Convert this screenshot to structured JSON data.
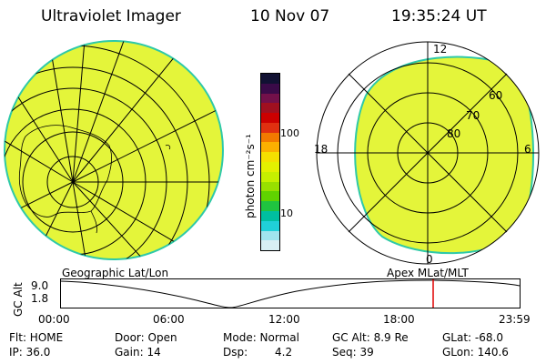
{
  "header": {
    "title": "Ultraviolet Imager",
    "date": "10 Nov 07",
    "time": "19:35:24 UT"
  },
  "colorbar": {
    "unit_label": "photon cm⁻²s⁻¹",
    "tick_100": "100",
    "tick_10": "10",
    "colors": [
      "#111133",
      "#3a0a48",
      "#73104a",
      "#a01020",
      "#cc0000",
      "#e03010",
      "#f27a00",
      "#fbb000",
      "#f5e000",
      "#e4f000",
      "#c6f000",
      "#98e000",
      "#60d300",
      "#20c440",
      "#00bfa0",
      "#20d0d8",
      "#a0e4ee",
      "#d8f0f4"
    ]
  },
  "geo_panel": {
    "label": "Geographic Lat/Lon",
    "fill": "#e4f53a",
    "edge": "#2ec9a8"
  },
  "polar_panel": {
    "label": "Apex  MLat/MLT",
    "mlt_top": "12",
    "mlt_bottom": "0",
    "mlt_left": "18",
    "mlt_right": "6",
    "lat_60": "60",
    "lat_70": "70",
    "lat_80": "80"
  },
  "altitude_plot": {
    "axis_label": "GC Alt",
    "y_top": "9.0",
    "y_bottom": "1.8",
    "x_ticks": [
      "00:00",
      "06:00",
      "12:00",
      "18:00",
      "23:59"
    ],
    "marker_color": "#e00000"
  },
  "status": {
    "flt": "Flt: HOME",
    "ip": "IP: 36.0",
    "door": "Door: Open",
    "gain": "Gain: 14",
    "mode": "Mode: Normal",
    "dsp_label": "Dsp:",
    "dsp_value": "4.2",
    "gc_alt": "GC Alt: 8.9 Re",
    "seq": "Seq: 39",
    "glat": "GLat: -68.0",
    "glon": "GLon: 140.6"
  }
}
